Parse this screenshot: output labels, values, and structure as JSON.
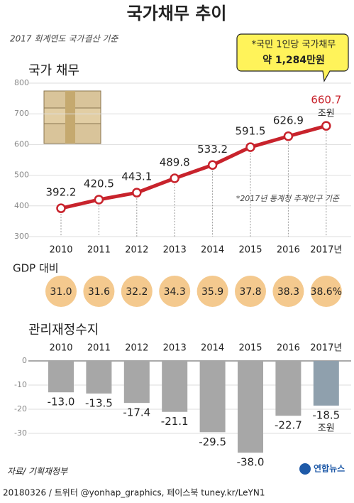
{
  "title": "국가채무 추이",
  "subtitle": "2017 회계연도 국가결산 기준",
  "callout": {
    "line1": "*국민 1인당 국가채무",
    "line2": "약 1,284만원"
  },
  "source": "자료/ 기획재정부",
  "footer": "20180326 / 트위터 @yonhap_graphics, 페이스북 tuney.kr/LeYN1",
  "logo": "연합뉴스",
  "chart_data": [
    {
      "type": "line",
      "title": "국가 채무",
      "unit": "조원",
      "note": "*2017년 통계청 추계인구 기준",
      "categories": [
        "2010",
        "2011",
        "2012",
        "2013",
        "2014",
        "2015",
        "2016",
        "2017년"
      ],
      "values": [
        392.2,
        420.5,
        443.1,
        489.8,
        533.2,
        591.5,
        626.9,
        660.7
      ],
      "color": "#c8232c",
      "ylim": [
        300,
        800
      ],
      "yticks": [
        300,
        400,
        500,
        600,
        700,
        800
      ],
      "grid": true
    },
    {
      "type": "text",
      "title": "GDP 대비",
      "categories": [
        "2010",
        "2011",
        "2012",
        "2013",
        "2014",
        "2015",
        "2016",
        "2017년"
      ],
      "values": [
        31.0,
        31.6,
        32.2,
        34.3,
        35.9,
        37.8,
        38.3,
        38.6
      ],
      "value_labels": [
        "31.0",
        "31.6",
        "32.2",
        "34.3",
        "35.9",
        "37.8",
        "38.3",
        "38.6%"
      ],
      "color": "#f4c98e"
    },
    {
      "type": "bar",
      "title": "관리재정수지",
      "unit": "조원",
      "categories": [
        "2010",
        "2011",
        "2012",
        "2013",
        "2014",
        "2015",
        "2016",
        "2017년"
      ],
      "values": [
        -13.0,
        -13.5,
        -17.4,
        -21.1,
        -29.5,
        -38.0,
        -22.7,
        -18.5
      ],
      "value_labels": [
        "-13.0",
        "-13.5",
        "-17.4",
        "-21.1",
        "-29.5",
        "-38.0",
        "-22.7",
        "-18.5"
      ],
      "colors": [
        "#a7a7a7",
        "#a7a7a7",
        "#a7a7a7",
        "#a7a7a7",
        "#a7a7a7",
        "#a7a7a7",
        "#a7a7a7",
        "#8fa0ad"
      ],
      "ylim": [
        -40,
        0
      ],
      "yticks": [
        0,
        -10,
        -20,
        -30
      ],
      "grid": true
    }
  ]
}
